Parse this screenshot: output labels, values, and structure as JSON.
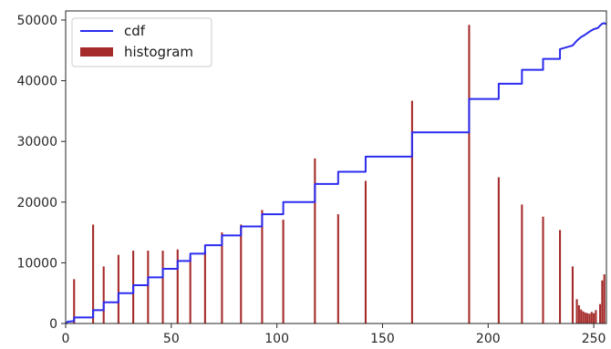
{
  "chart_data": {
    "type": "bar",
    "title": "",
    "xlabel": "",
    "ylabel": "",
    "xlim": [
      0,
      256
    ],
    "ylim": [
      0,
      51500
    ],
    "x_ticks": [
      0,
      50,
      100,
      150,
      200,
      250
    ],
    "y_ticks": [
      0,
      10000,
      20000,
      30000,
      40000,
      50000
    ],
    "grid": false,
    "legend_position": "upper-left",
    "colors": {
      "cdf": "#2b2bf0",
      "histogram": "#a52a2a"
    },
    "legend": [
      {
        "label": "cdf",
        "kind": "line"
      },
      {
        "label": "histogram",
        "kind": "bar"
      }
    ],
    "series": [
      {
        "name": "histogram",
        "type": "bar",
        "x": [
          4,
          13,
          18,
          25,
          32,
          39,
          46,
          53,
          59,
          66,
          74,
          83,
          93,
          103,
          118,
          129,
          142,
          164,
          191,
          205,
          216,
          226,
          234,
          240,
          242,
          243,
          244,
          245,
          246,
          247,
          248,
          249,
          250,
          251,
          253,
          254,
          255
        ],
        "values": [
          7300,
          16300,
          9400,
          11300,
          12000,
          12000,
          12000,
          12200,
          11000,
          12000,
          15000,
          16300,
          18700,
          17100,
          27200,
          18000,
          23500,
          36700,
          49200,
          24100,
          19600,
          17600,
          15400,
          9400,
          4000,
          3000,
          2300,
          2000,
          1800,
          1700,
          1600,
          1900,
          1700,
          2200,
          3200,
          7100,
          8100
        ]
      },
      {
        "name": "cdf",
        "type": "line",
        "x": [
          0,
          1,
          4,
          4,
          13,
          13,
          18,
          18,
          25,
          25,
          32,
          32,
          39,
          39,
          46,
          46,
          53,
          53,
          59,
          59,
          66,
          66,
          74,
          74,
          83,
          83,
          93,
          93,
          103,
          103,
          118,
          118,
          129,
          129,
          142,
          142,
          164,
          164,
          191,
          191,
          205,
          205,
          216,
          216,
          226,
          226,
          234,
          234,
          240,
          242,
          244,
          246,
          248,
          250,
          252,
          253,
          254,
          255,
          256
        ],
        "values": [
          0,
          300,
          400,
          1000,
          1000,
          2200,
          2200,
          3500,
          3500,
          5000,
          5000,
          6300,
          6300,
          7600,
          7600,
          9000,
          9000,
          10300,
          10300,
          11500,
          11500,
          12900,
          12900,
          14500,
          14500,
          16000,
          16000,
          18000,
          18000,
          20000,
          20000,
          23000,
          23000,
          25000,
          25000,
          27500,
          27500,
          31500,
          31500,
          37000,
          37000,
          39500,
          39500,
          41800,
          41800,
          43600,
          43600,
          45200,
          45800,
          46600,
          47200,
          47600,
          48100,
          48500,
          48700,
          49100,
          49400,
          49500,
          49300
        ]
      }
    ]
  }
}
